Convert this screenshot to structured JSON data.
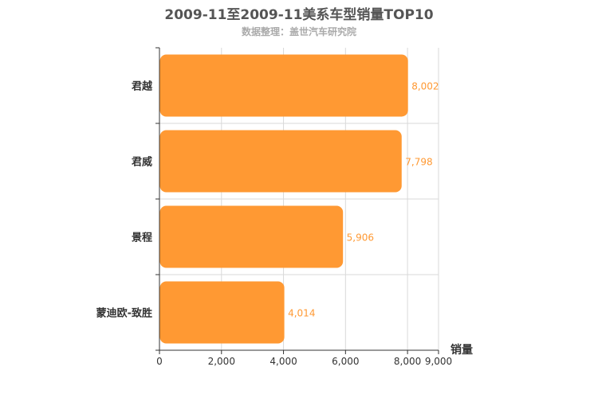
{
  "chart_data": {
    "type": "bar",
    "orientation": "horizontal",
    "title": "2009-11至2009-11美系车型销量TOP10",
    "subtitle": "数据整理：盖世汽车研究院",
    "xlabel": "销量",
    "ylabel": "",
    "xlim": [
      0,
      9000
    ],
    "x_ticks": [
      0,
      2000,
      4000,
      6000,
      8000,
      9000
    ],
    "x_tick_labels": [
      "0",
      "2,000",
      "4,000",
      "6,000",
      "8,000",
      "9,000"
    ],
    "categories": [
      "君越",
      "君威",
      "景程",
      "蒙迪欧-致胜"
    ],
    "values": [
      8002,
      7798,
      5906,
      4014
    ],
    "value_labels": [
      "8,002",
      "7,798",
      "5,906",
      "4,014"
    ],
    "grid": true,
    "colors": {
      "bar": "#ff9933",
      "value_label": "#ff9933",
      "grid": "#d9d9d9",
      "axis": "#333333"
    }
  }
}
